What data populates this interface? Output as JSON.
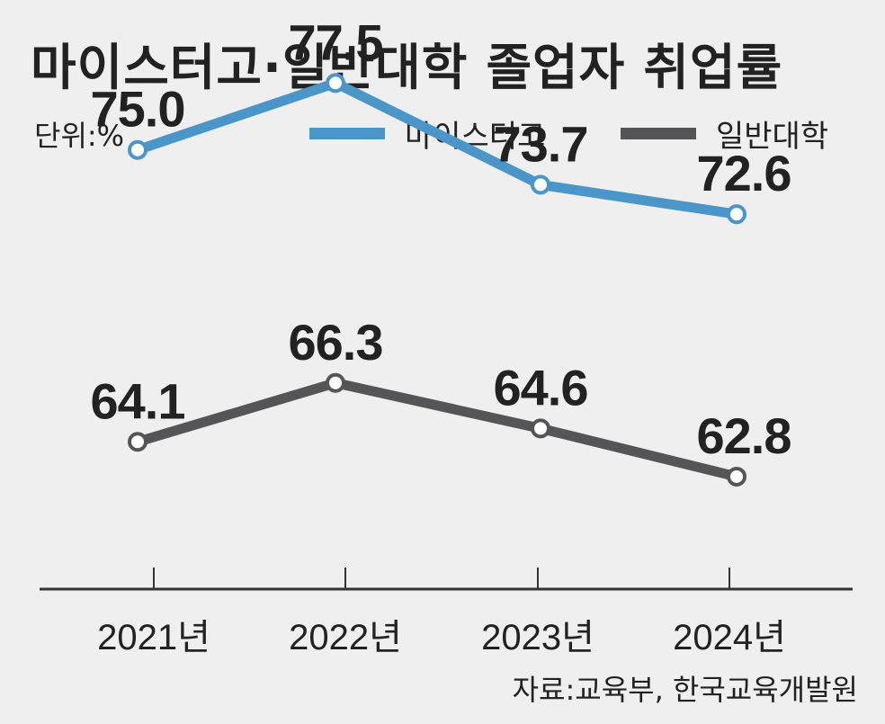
{
  "title": "마이스터고·일반대학 졸업자 취업률",
  "unit": "단위:%",
  "source": "자료:교육부, 한국교육개발원",
  "chart_data": {
    "type": "line",
    "title": "마이스터고·일반대학 졸업자 취업률",
    "categories": [
      "2021년",
      "2022년",
      "2023년",
      "2024년"
    ],
    "series": [
      {
        "name": "마이스터고",
        "color": "#4a96c9",
        "values": [
          75.0,
          77.5,
          73.7,
          72.6
        ],
        "labels": [
          "75.0",
          "77.5",
          "73.7",
          "72.6"
        ]
      },
      {
        "name": "일반대학",
        "color": "#555558",
        "values": [
          64.1,
          66.3,
          64.6,
          62.8
        ],
        "labels": [
          "64.1",
          "66.3",
          "64.6",
          "62.8"
        ]
      }
    ],
    "xlabel": "",
    "ylabel": "",
    "ylim": [
      58.6,
      80.6
    ],
    "grid": false,
    "legend": "top-right"
  }
}
